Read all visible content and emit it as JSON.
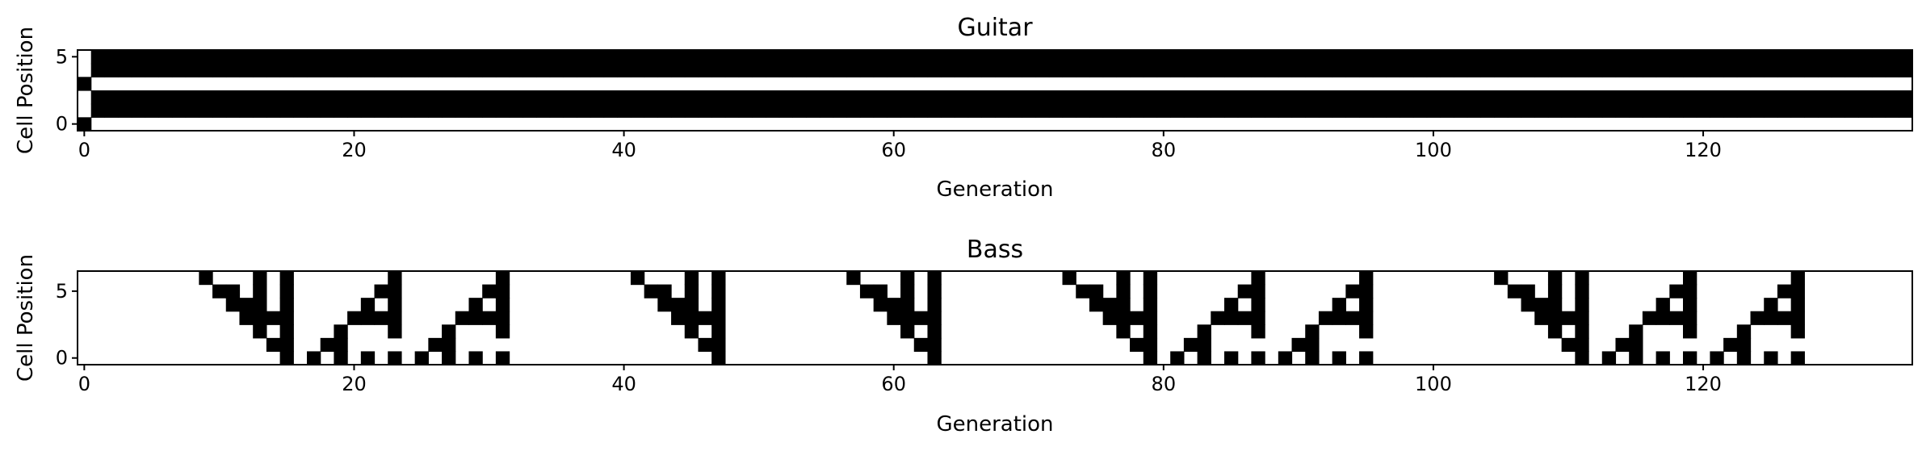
{
  "chart_data": [
    {
      "type": "heatmap",
      "title": "Guitar",
      "xlabel": "Generation",
      "ylabel": "Cell Position",
      "xlim": [
        -0.5,
        135.5
      ],
      "ylim": [
        -0.5,
        5.5
      ],
      "origin": "lower",
      "colormap": {
        "0": "#ffffff",
        "1": "#000000"
      },
      "xticks": [
        0,
        20,
        40,
        60,
        80,
        100,
        120
      ],
      "yticks": [
        0,
        5
      ],
      "grid": false,
      "rule": 90,
      "boundary": "periodic",
      "width": 6,
      "generations": 136,
      "initial_state": [
        1,
        0,
        0,
        1,
        0,
        0
      ],
      "rows": []
    },
    {
      "type": "heatmap",
      "title": "Bass",
      "xlabel": "Generation",
      "ylabel": "Cell Position",
      "xlim": [
        -0.5,
        135.5
      ],
      "ylim": [
        -0.5,
        6.5
      ],
      "origin": "lower",
      "colormap": {
        "0": "#ffffff",
        "1": "#000000"
      },
      "xticks": [
        0,
        20,
        40,
        60,
        80,
        100,
        120
      ],
      "yticks": [
        0,
        5
      ],
      "grid": false,
      "rows": [
        {
          "y": 6,
          "cells": [
            9,
            13,
            15,
            23,
            31,
            41,
            45,
            47,
            57,
            61,
            63,
            73,
            77,
            79,
            87,
            95,
            105,
            109,
            111,
            119,
            127
          ]
        },
        {
          "y": 5,
          "cells": [
            10,
            11,
            13,
            15,
            22,
            23,
            30,
            31,
            42,
            43,
            45,
            47,
            58,
            59,
            61,
            63,
            74,
            75,
            77,
            79,
            86,
            87,
            94,
            95,
            106,
            107,
            109,
            111,
            118,
            119,
            126,
            127
          ]
        },
        {
          "y": 4,
          "cells": [
            11,
            12,
            13,
            15,
            21,
            23,
            29,
            31,
            43,
            44,
            45,
            47,
            59,
            60,
            61,
            63,
            75,
            76,
            77,
            79,
            85,
            87,
            93,
            95,
            107,
            108,
            109,
            111,
            117,
            119,
            125,
            127
          ]
        },
        {
          "y": 3,
          "cells": [
            12,
            13,
            14,
            15,
            20,
            21,
            22,
            23,
            28,
            29,
            30,
            31,
            44,
            45,
            46,
            47,
            60,
            61,
            62,
            63,
            76,
            77,
            78,
            79,
            84,
            85,
            86,
            87,
            92,
            93,
            94,
            95,
            108,
            109,
            110,
            111,
            116,
            117,
            118,
            119,
            124,
            125,
            126,
            127
          ]
        },
        {
          "y": 2,
          "cells": [
            13,
            15,
            19,
            23,
            27,
            31,
            45,
            47,
            61,
            63,
            77,
            79,
            83,
            87,
            91,
            95,
            109,
            111,
            115,
            119,
            123,
            127
          ]
        },
        {
          "y": 1,
          "cells": [
            14,
            15,
            18,
            19,
            26,
            27,
            46,
            47,
            62,
            63,
            78,
            79,
            82,
            83,
            90,
            91,
            110,
            111,
            114,
            115,
            122,
            123
          ]
        },
        {
          "y": 0,
          "cells": [
            15,
            17,
            19,
            21,
            23,
            25,
            27,
            29,
            31,
            47,
            63,
            79,
            81,
            83,
            85,
            87,
            89,
            91,
            93,
            95,
            111,
            113,
            115,
            117,
            119,
            121,
            123,
            125,
            127
          ]
        }
      ]
    }
  ]
}
